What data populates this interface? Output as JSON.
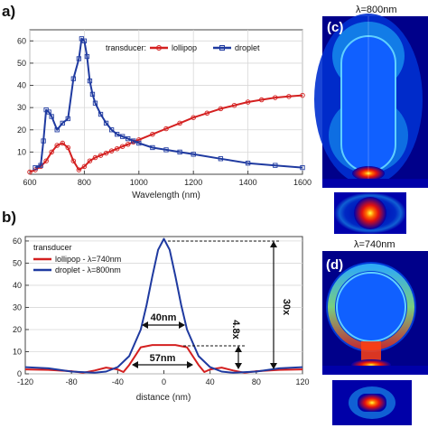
{
  "panel_a": {
    "letter": "a)",
    "legend": {
      "prefix": "transducer:",
      "entries": [
        "lollipop",
        "droplet"
      ]
    },
    "colors": {
      "lollipop": "#d42020",
      "droplet": "#1f3aa0"
    }
  },
  "panel_b": {
    "letter": "b)",
    "legend": {
      "title": "transducer",
      "entries": [
        "lollipop - λ=740nm",
        "droplet - λ=800nm"
      ]
    },
    "annotations": {
      "fwhm_droplet": "40nm",
      "fwhm_lollipop": "57nm",
      "ratio_30": "30x",
      "ratio_48": "4.8x"
    }
  },
  "panel_c": {
    "letter": "(c)",
    "title": "λ=800nm"
  },
  "panel_d": {
    "letter": "(d)",
    "title": "λ=740nm"
  },
  "chart_data": [
    {
      "type": "line",
      "xlabel": "Wavelength (nm)",
      "ylabel": "",
      "xlim": [
        600,
        1600
      ],
      "ylim": [
        0,
        65
      ],
      "xticks": [
        600,
        800,
        1000,
        1200,
        1400,
        1600
      ],
      "yticks": [
        10,
        20,
        30,
        40,
        50,
        60
      ],
      "series": [
        {
          "name": "lollipop",
          "x": [
            600,
            620,
            640,
            660,
            680,
            700,
            720,
            740,
            760,
            780,
            800,
            820,
            840,
            860,
            880,
            900,
            920,
            940,
            960,
            980,
            1000,
            1050,
            1100,
            1150,
            1200,
            1250,
            1300,
            1350,
            1400,
            1450,
            1500,
            1550,
            1600
          ],
          "y": [
            1,
            2,
            3.5,
            6,
            10,
            13,
            14,
            12,
            6,
            2,
            3.5,
            6,
            7.5,
            8.5,
            9.5,
            10.5,
            11.5,
            12.5,
            13.5,
            14.5,
            15.5,
            18,
            20.5,
            23,
            25.5,
            27.5,
            29.5,
            31,
            32.5,
            33.5,
            34.5,
            35,
            35.5
          ]
        },
        {
          "name": "droplet",
          "x": [
            620,
            640,
            650,
            660,
            670,
            680,
            700,
            720,
            740,
            760,
            780,
            790,
            800,
            810,
            820,
            830,
            840,
            860,
            880,
            900,
            920,
            940,
            960,
            980,
            1000,
            1050,
            1100,
            1150,
            1200,
            1300,
            1400,
            1500,
            1600
          ],
          "y": [
            3,
            4,
            15,
            29,
            28,
            26,
            20,
            23,
            25,
            43,
            52,
            61,
            60,
            53,
            42,
            36,
            32,
            27,
            23,
            20,
            18,
            17,
            16,
            15,
            14,
            12,
            11,
            10,
            9,
            7,
            5,
            4,
            3
          ]
        }
      ]
    },
    {
      "type": "line",
      "xlabel": "distance (nm)",
      "ylabel": "",
      "xlim": [
        -120,
        120
      ],
      "ylim": [
        0,
        62
      ],
      "xticks": [
        -120,
        -80,
        -40,
        0,
        40,
        80,
        120
      ],
      "yticks": [
        0,
        10,
        20,
        30,
        40,
        50,
        60
      ],
      "series": [
        {
          "name": "lollipop - λ=740nm",
          "x": [
            -120,
            -100,
            -80,
            -70,
            -60,
            -50,
            -40,
            -35,
            -30,
            -25,
            -20,
            -10,
            0,
            10,
            20,
            25,
            30,
            35,
            40,
            50,
            60,
            70,
            80,
            100,
            120
          ],
          "y": [
            2,
            1.8,
            1.2,
            0.5,
            1.5,
            2.8,
            2,
            0.8,
            4,
            8,
            12,
            13,
            13,
            13,
            12,
            8,
            4,
            0.8,
            2,
            2.8,
            1.5,
            0.5,
            1.2,
            1.8,
            2
          ]
        },
        {
          "name": "droplet - λ=800nm",
          "x": [
            -120,
            -100,
            -80,
            -60,
            -50,
            -40,
            -30,
            -20,
            -15,
            -10,
            -5,
            0,
            5,
            10,
            15,
            20,
            30,
            40,
            50,
            60,
            80,
            100,
            120
          ],
          "y": [
            3,
            2.5,
            1,
            0.5,
            1,
            3,
            8,
            20,
            31,
            44,
            56,
            61,
            56,
            44,
            31,
            20,
            8,
            3,
            1,
            0.5,
            1,
            2.5,
            3
          ]
        }
      ]
    }
  ]
}
